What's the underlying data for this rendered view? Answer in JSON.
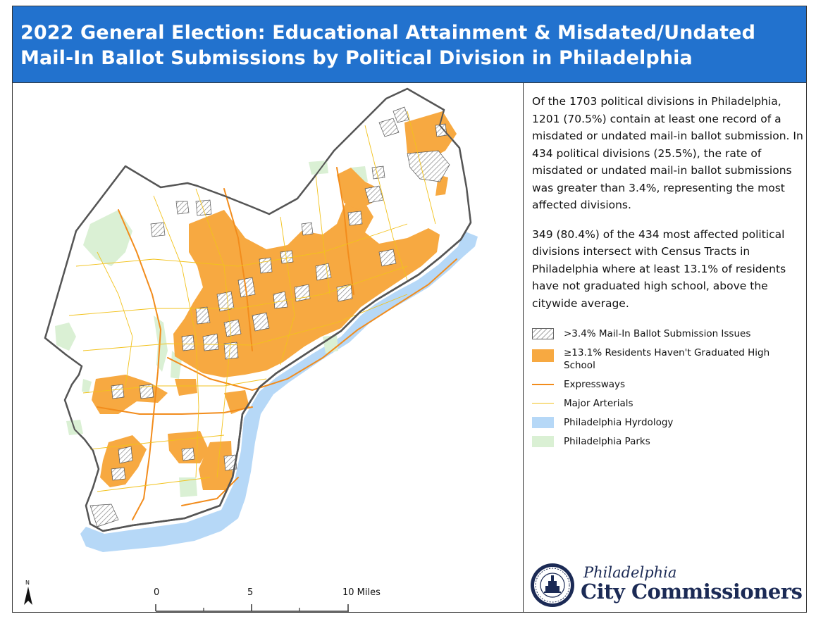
{
  "header": {
    "title_line1": "2022 General Election: Educational Attainment & Misdated/Undated",
    "title_line2": "Mail-In Ballot Submissions by Political Division in Philadelphia"
  },
  "summary": {
    "paragraph1": "Of the 1703 political divisions in Philadelphia, 1201 (70.5%) contain at least one record of a misdated or undated mail-in ballot submission. In 434 political divisions (25.5%), the rate of misdated or undated mail-in ballot submissions was greater than 3.4%, representing the most affected divisions.",
    "paragraph2": "349 (80.4%) of the 434 most affected political divisions intersect with Census Tracts in Philadelphia where at least 13.1% of residents have not graduated high school, above the citywide average."
  },
  "legend": [
    {
      "label": ">3.4% Mail-In Ballot Submission Issues",
      "type": "hatch",
      "color": "#888888"
    },
    {
      "label": "≥13.1% Residents Haven't Graduated High School",
      "type": "fill",
      "color": "#f7a941"
    },
    {
      "label": "Expressways",
      "type": "expressway",
      "color": "#f28c1c"
    },
    {
      "label": "Major Arterials",
      "type": "arterial",
      "color": "#f2c21c"
    },
    {
      "label": "Philadelphia Hyrdology",
      "type": "fill",
      "color": "#b6d8f7"
    },
    {
      "label": "Philadelphia Parks",
      "type": "fill",
      "color": "#daf0d4"
    }
  ],
  "scale": {
    "labels": [
      "0",
      "5",
      "10 Miles"
    ]
  },
  "north_arrow": {
    "label": "N"
  },
  "logo": {
    "line1": "Philadelphia",
    "line2": "City Commissioners"
  },
  "colors": {
    "title_bar": "#2272ce",
    "education_fill": "#f7a941",
    "water": "#b6d8f7",
    "parks": "#daf0d4",
    "expressway": "#f28c1c",
    "arterial": "#f2c21c",
    "boundary": "#555555"
  }
}
